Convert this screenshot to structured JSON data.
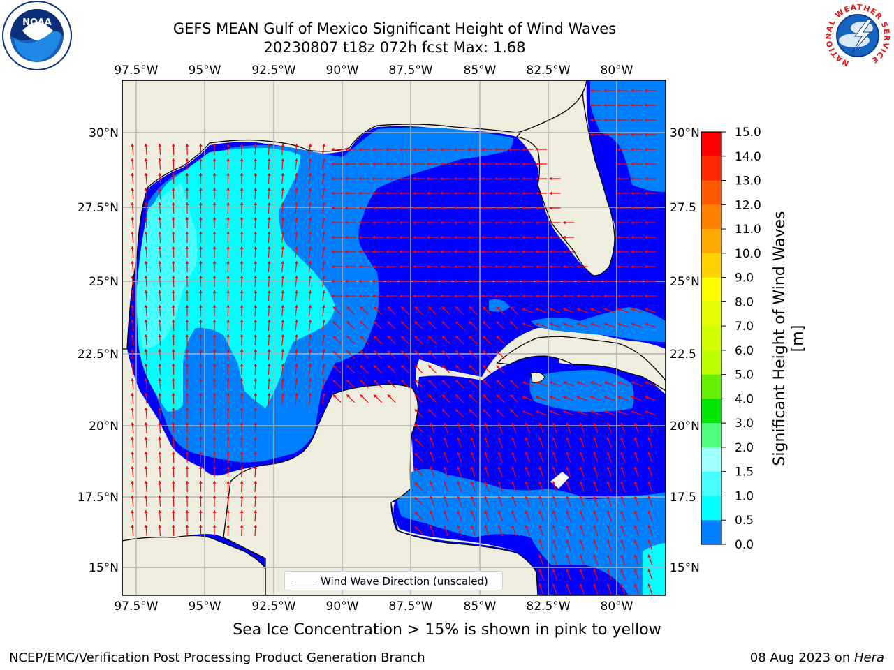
{
  "header": {
    "title_line1": "GEFS MEAN Gulf of Mexico Significant Height of Wind Waves",
    "title_line2": "20230807 t18z 072h fcst   Max: 1.68"
  },
  "logos": {
    "left": "noaa-logo",
    "right": "nws-logo",
    "noaa_text": "NOAA",
    "nws_ring_text": "NATIONAL WEATHER SERVICE"
  },
  "map": {
    "lon_ticks": [
      "97.5°W",
      "95°W",
      "92.5°W",
      "90°W",
      "87.5°W",
      "85°W",
      "82.5°W",
      "80°W"
    ],
    "lat_ticks_left": [
      "30°N",
      "27.5°N",
      "25°N",
      "22.5°N",
      "20°N",
      "17.5°N",
      "15°N"
    ],
    "lat_ticks_right": [
      "30°N",
      "27.5",
      "25°N",
      "22.5",
      "20°N",
      "17.5",
      "15°N"
    ],
    "colors": {
      "land": "#efedde",
      "ocean_0_0.5": "#0000ff",
      "ocean_0.5_1.0": "#0080ff",
      "ocean_1.0_1.5": "#00ffff",
      "ocean_1.5_2.0": "#48ffff",
      "arrow": "#ff0000"
    }
  },
  "legend": {
    "label": "Wind Wave Direction (unscaled)"
  },
  "colorbar": {
    "label": "Significant Height of Wind Waves [m]",
    "ticks": [
      "15.0",
      "14.0",
      "13.0",
      "12.0",
      "11.0",
      "10.0",
      "9.0",
      "8.0",
      "7.0",
      "6.0",
      "5.0",
      "4.0",
      "3.0",
      "2.0",
      "1.5",
      "1.0",
      "0.5",
      "0.0"
    ],
    "colors": [
      "#ff0000",
      "#ff2800",
      "#ff5a00",
      "#ff8000",
      "#ffaa00",
      "#ffd200",
      "#ffff00",
      "#e6ff00",
      "#d2ff00",
      "#beff00",
      "#64f000",
      "#00e600",
      "#50ff80",
      "#a0ffff",
      "#48ffff",
      "#00ffff",
      "#0080ff",
      "#0000ff"
    ]
  },
  "caption": "Sea Ice Concentration > 15% is shown in pink to yellow",
  "footer": {
    "left": "NCEP/EMC/Verification Post Processing Product Generation Branch",
    "right_date": "08 Aug 2023 on ",
    "right_host": "Hera"
  }
}
